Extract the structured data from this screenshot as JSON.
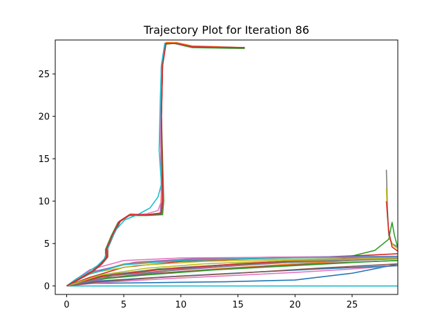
{
  "chart_data": {
    "type": "line",
    "title": "Trajectory Plot for Iteration 86",
    "xlabel": "",
    "ylabel": "",
    "xlim": [
      -1,
      29
    ],
    "ylim": [
      -1,
      29
    ],
    "x_ticks": [
      0,
      5,
      10,
      15,
      20,
      25
    ],
    "y_ticks": [
      0,
      5,
      10,
      15,
      20,
      25
    ],
    "grid": false,
    "series": [
      {
        "color": "#1f77b4",
        "points": [
          [
            0,
            0
          ],
          [
            2,
            0.3
          ],
          [
            8,
            0.4
          ],
          [
            14,
            0.5
          ],
          [
            20,
            0.7
          ],
          [
            25,
            1.5
          ],
          [
            28,
            2.3
          ],
          [
            29,
            2.6
          ]
        ]
      },
      {
        "color": "#ff7f0e",
        "points": [
          [
            0,
            0
          ],
          [
            3,
            0.8
          ],
          [
            8,
            1.5
          ],
          [
            14,
            2.1
          ],
          [
            20,
            2.6
          ],
          [
            25,
            3.0
          ],
          [
            29,
            3.3
          ]
        ]
      },
      {
        "color": "#2ca02c",
        "points": [
          [
            0,
            0
          ],
          [
            3,
            1.2
          ],
          [
            8,
            2.0
          ],
          [
            14,
            2.5
          ],
          [
            20,
            2.8
          ],
          [
            24,
            3.2
          ],
          [
            27,
            4.2
          ],
          [
            28.2,
            5.5
          ],
          [
            28.5,
            7.5
          ],
          [
            28.7,
            6.0
          ],
          [
            29,
            4.5
          ]
        ]
      },
      {
        "color": "#d62728",
        "points": [
          [
            0,
            0
          ],
          [
            2,
            1.0
          ],
          [
            5,
            2.2
          ],
          [
            10,
            2.9
          ],
          [
            16,
            3.2
          ],
          [
            22,
            3.4
          ],
          [
            26,
            3.6
          ],
          [
            29,
            3.8
          ]
        ]
      },
      {
        "color": "#9467bd",
        "points": [
          [
            0,
            0
          ],
          [
            4,
            1.0
          ],
          [
            9,
            1.8
          ],
          [
            15,
            2.4
          ],
          [
            21,
            2.9
          ],
          [
            26,
            3.3
          ],
          [
            29,
            3.5
          ]
        ]
      },
      {
        "color": "#8c564b",
        "points": [
          [
            0,
            0
          ],
          [
            3,
            0.9
          ],
          [
            9,
            1.6
          ],
          [
            16,
            2.2
          ],
          [
            23,
            2.7
          ],
          [
            29,
            3.0
          ]
        ]
      },
      {
        "color": "#e377c2",
        "points": [
          [
            0,
            0
          ],
          [
            3,
            0.4
          ],
          [
            8,
            0.8
          ],
          [
            14,
            1.2
          ],
          [
            20,
            1.6
          ],
          [
            25,
            2.0
          ],
          [
            29,
            2.4
          ]
        ]
      },
      {
        "color": "#7f7f7f",
        "points": [
          [
            0,
            0
          ],
          [
            4,
            1.4
          ],
          [
            10,
            2.2
          ],
          [
            17,
            2.7
          ],
          [
            24,
            3.1
          ],
          [
            29,
            3.3
          ]
        ]
      },
      {
        "color": "#bcbd22",
        "points": [
          [
            0,
            0
          ],
          [
            2,
            1.5
          ],
          [
            6,
            2.4
          ],
          [
            12,
            2.9
          ],
          [
            18,
            3.1
          ],
          [
            24,
            3.2
          ],
          [
            29,
            3.3
          ]
        ]
      },
      {
        "color": "#17becf",
        "points": [
          [
            0,
            0
          ],
          [
            3,
            0
          ],
          [
            10,
            0
          ],
          [
            20,
            0
          ],
          [
            29,
            0
          ]
        ]
      },
      {
        "color": "#1f77b4",
        "points": [
          [
            0,
            0
          ],
          [
            3,
            0.6
          ],
          [
            9,
            1.1
          ],
          [
            16,
            1.6
          ],
          [
            22,
            2.0
          ],
          [
            29,
            2.4
          ]
        ]
      },
      {
        "color": "#ff7f0e",
        "points": [
          [
            0,
            0
          ],
          [
            1.5,
            1.2
          ],
          [
            5,
            2.6
          ],
          [
            10,
            3.1
          ],
          [
            16,
            3.3
          ],
          [
            22,
            3.4
          ],
          [
            29,
            3.5
          ]
        ]
      },
      {
        "color": "#2ca02c",
        "points": [
          [
            0,
            0
          ],
          [
            2,
            0.7
          ],
          [
            7,
            1.3
          ],
          [
            13,
            1.9
          ],
          [
            20,
            2.4
          ],
          [
            27,
            2.9
          ],
          [
            29,
            3.0
          ]
        ]
      },
      {
        "color": "#d62728",
        "points": [
          [
            0,
            0
          ],
          [
            3,
            1.1
          ],
          [
            8,
            1.9
          ],
          [
            15,
            2.6
          ],
          [
            22,
            3.1
          ],
          [
            29,
            3.4
          ]
        ]
      },
      {
        "color": "#9467bd",
        "points": [
          [
            0,
            0
          ],
          [
            2,
            1.6
          ],
          [
            6,
            2.8
          ],
          [
            11,
            3.2
          ],
          [
            18,
            3.4
          ],
          [
            29,
            3.5
          ]
        ]
      },
      {
        "color": "#8c564b",
        "points": [
          [
            0,
            0
          ],
          [
            3,
            0.5
          ],
          [
            8,
            1.0
          ],
          [
            15,
            1.5
          ],
          [
            22,
            2.1
          ],
          [
            29,
            2.6
          ]
        ]
      },
      {
        "color": "#e377c2",
        "points": [
          [
            0,
            0
          ],
          [
            2,
            1.9
          ],
          [
            5,
            3.0
          ],
          [
            10,
            3.3
          ],
          [
            20,
            3.4
          ],
          [
            29,
            3.3
          ]
        ]
      },
      {
        "color": "#7f7f7f",
        "points": [
          [
            0,
            0
          ],
          [
            4,
            1.2
          ],
          [
            11,
            2.1
          ],
          [
            18,
            2.7
          ],
          [
            29,
            3.2
          ]
        ]
      },
      {
        "color": "#bcbd22",
        "points": [
          [
            0,
            0
          ],
          [
            3,
            1.3
          ],
          [
            7,
            2.1
          ],
          [
            12,
            2.6
          ],
          [
            19,
            3.0
          ],
          [
            29,
            3.3
          ]
        ]
      },
      {
        "color": "#17becf",
        "points": [
          [
            0,
            0
          ],
          [
            2,
            1.4
          ],
          [
            5,
            2.5
          ],
          [
            10,
            3.0
          ],
          [
            18,
            3.3
          ],
          [
            29,
            3.4
          ]
        ]
      },
      {
        "color": "#1f77b4",
        "points": [
          [
            0,
            0
          ],
          [
            0.5,
            0.4
          ],
          [
            1.3,
            1.0
          ],
          [
            2.3,
            1.8
          ],
          [
            3.0,
            2.6
          ],
          [
            3.5,
            3.4
          ],
          [
            3.5,
            4.4
          ],
          [
            4.0,
            6.0
          ],
          [
            4.6,
            7.6
          ],
          [
            5.5,
            8.4
          ],
          [
            7,
            8.4
          ],
          [
            8.3,
            8.5
          ],
          [
            8.4,
            10
          ],
          [
            8.2,
            20
          ],
          [
            8.3,
            26
          ],
          [
            8.6,
            28.6
          ],
          [
            9.5,
            28.6
          ],
          [
            11,
            28.2
          ],
          [
            15.6,
            28.1
          ]
        ]
      },
      {
        "color": "#ff7f0e",
        "points": [
          [
            0,
            0
          ],
          [
            0.6,
            0.5
          ],
          [
            1.4,
            1.1
          ],
          [
            2.4,
            1.9
          ],
          [
            3.1,
            2.7
          ],
          [
            3.6,
            3.5
          ],
          [
            3.6,
            4.5
          ],
          [
            4.1,
            6.1
          ],
          [
            4.7,
            7.7
          ],
          [
            5.6,
            8.5
          ],
          [
            7,
            8.4
          ],
          [
            8.2,
            8.6
          ],
          [
            8.3,
            11
          ],
          [
            8.2,
            20
          ],
          [
            8.3,
            26
          ],
          [
            8.7,
            28.7
          ],
          [
            9.6,
            28.7
          ],
          [
            11,
            28.3
          ],
          [
            15.6,
            28.1
          ]
        ]
      },
      {
        "color": "#2ca02c",
        "points": [
          [
            0,
            0
          ],
          [
            0.4,
            0.3
          ],
          [
            1.2,
            0.9
          ],
          [
            2.2,
            1.7
          ],
          [
            2.9,
            2.5
          ],
          [
            3.4,
            3.3
          ],
          [
            3.4,
            4.3
          ],
          [
            3.9,
            5.9
          ],
          [
            4.5,
            7.5
          ],
          [
            5.4,
            8.3
          ],
          [
            7,
            8.3
          ],
          [
            8.4,
            8.4
          ],
          [
            8.5,
            10
          ],
          [
            8.3,
            20
          ],
          [
            8.4,
            26
          ],
          [
            8.6,
            28.5
          ],
          [
            9.4,
            28.6
          ],
          [
            11,
            28.1
          ],
          [
            15.6,
            28.0
          ]
        ]
      },
      {
        "color": "#9467bd",
        "points": [
          [
            0,
            0
          ],
          [
            0.5,
            0.4
          ],
          [
            1.3,
            1.0
          ],
          [
            2.3,
            1.8
          ],
          [
            3.0,
            2.6
          ],
          [
            3.5,
            3.4
          ],
          [
            3.5,
            4.4
          ],
          [
            4.0,
            6.0
          ],
          [
            4.6,
            7.6
          ],
          [
            5.5,
            8.4
          ],
          [
            7,
            8.4
          ],
          [
            8.2,
            8.5
          ],
          [
            8.3,
            10
          ],
          [
            8.2,
            20
          ],
          [
            8.3,
            26
          ],
          [
            8.6,
            28.6
          ],
          [
            9.5,
            28.6
          ],
          [
            11,
            28.2
          ],
          [
            15.5,
            28.1
          ]
        ]
      },
      {
        "color": "#8c564b",
        "points": [
          [
            0,
            0
          ],
          [
            0.6,
            0.4
          ],
          [
            1.4,
            1.0
          ],
          [
            2.4,
            1.8
          ],
          [
            3.1,
            2.6
          ],
          [
            3.6,
            3.4
          ],
          [
            3.6,
            4.4
          ],
          [
            4.1,
            6.0
          ],
          [
            4.7,
            7.6
          ],
          [
            5.6,
            8.4
          ],
          [
            7,
            8.4
          ],
          [
            8.3,
            8.5
          ],
          [
            8.4,
            10
          ],
          [
            8.3,
            20
          ],
          [
            8.4,
            26
          ],
          [
            8.7,
            28.6
          ],
          [
            9.6,
            28.6
          ],
          [
            11,
            28.2
          ],
          [
            15.6,
            28.1
          ]
        ]
      },
      {
        "color": "#e377c2",
        "points": [
          [
            0,
            0
          ],
          [
            0.5,
            0.4
          ],
          [
            1.3,
            1.0
          ],
          [
            2.3,
            1.8
          ],
          [
            3.0,
            2.6
          ],
          [
            3.5,
            3.4
          ],
          [
            3.5,
            4.4
          ],
          [
            4.0,
            6.0
          ],
          [
            4.6,
            7.6
          ],
          [
            5.5,
            8.4
          ],
          [
            7,
            8.5
          ],
          [
            8.0,
            8.9
          ],
          [
            8.3,
            10
          ],
          [
            8.2,
            20
          ],
          [
            8.3,
            26
          ],
          [
            8.6,
            28.6
          ],
          [
            9.5,
            28.6
          ],
          [
            11,
            28.2
          ],
          [
            15.6,
            28.1
          ]
        ]
      },
      {
        "color": "#17becf",
        "points": [
          [
            0,
            0
          ],
          [
            0.8,
            0.8
          ],
          [
            1.8,
            1.6
          ],
          [
            2.7,
            2.4
          ],
          [
            3.3,
            3.2
          ],
          [
            3.5,
            4.0
          ],
          [
            3.8,
            5.2
          ],
          [
            4.3,
            6.6
          ],
          [
            5.1,
            7.8
          ],
          [
            6.2,
            8.4
          ],
          [
            7.3,
            9.2
          ],
          [
            8.0,
            10.5
          ],
          [
            8.3,
            12
          ],
          [
            8.1,
            16
          ],
          [
            8.2,
            22
          ],
          [
            8.3,
            26
          ],
          [
            8.6,
            28.6
          ],
          [
            9.5,
            28.6
          ],
          [
            11,
            28.2
          ],
          [
            15.6,
            28.1
          ]
        ]
      },
      {
        "color": "#d62728",
        "points": [
          [
            0,
            0
          ],
          [
            0.5,
            0.4
          ],
          [
            1.3,
            1.0
          ],
          [
            2.3,
            1.8
          ],
          [
            3.0,
            2.6
          ],
          [
            3.5,
            3.4
          ],
          [
            3.5,
            4.4
          ],
          [
            4.0,
            6.0
          ],
          [
            4.6,
            7.6
          ],
          [
            5.5,
            8.4
          ],
          [
            7,
            8.4
          ],
          [
            8.3,
            8.6
          ],
          [
            8.4,
            10
          ],
          [
            8.3,
            20
          ],
          [
            8.4,
            26
          ],
          [
            8.7,
            28.6
          ],
          [
            9.6,
            28.6
          ],
          [
            11,
            28.2
          ],
          [
            15.6,
            28.1
          ]
        ]
      },
      {
        "color": "#7f7f7f",
        "points": [
          [
            28.0,
            13.7
          ],
          [
            28.1,
            9
          ],
          [
            28.2,
            6
          ],
          [
            28.5,
            5.0
          ],
          [
            29,
            4.6
          ]
        ]
      },
      {
        "color": "#bcbd22",
        "points": [
          [
            28.0,
            11.5
          ],
          [
            28.1,
            8
          ],
          [
            28.3,
            5.5
          ],
          [
            28.6,
            4.8
          ],
          [
            29,
            4.4
          ]
        ]
      },
      {
        "color": "#d62728",
        "points": [
          [
            28.0,
            10.0
          ],
          [
            28.2,
            6.5
          ],
          [
            28.5,
            4.6
          ],
          [
            29,
            4.1
          ]
        ]
      }
    ]
  }
}
